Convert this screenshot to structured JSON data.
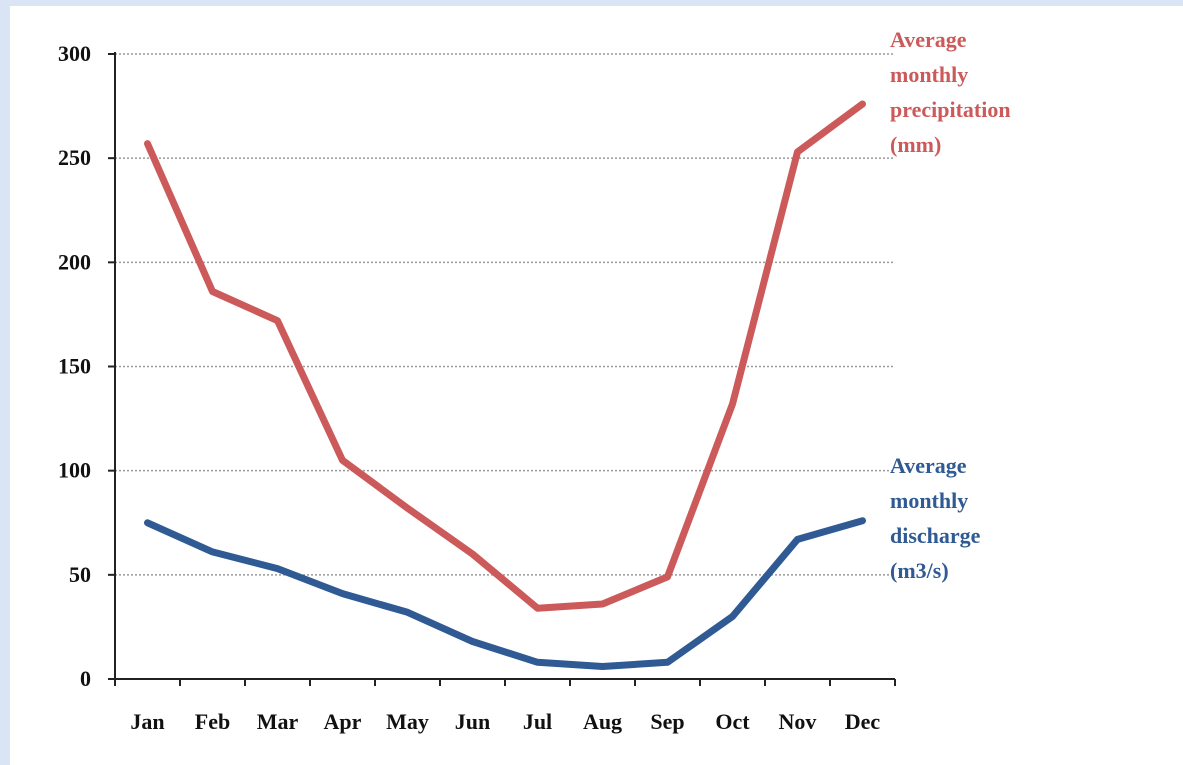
{
  "chart_data": {
    "type": "line",
    "categories": [
      "Jan",
      "Feb",
      "Mar",
      "Apr",
      "May",
      "Jun",
      "Jul",
      "Aug",
      "Sep",
      "Oct",
      "Nov",
      "Dec"
    ],
    "series": [
      {
        "name": "Average monthly precipitation (mm)",
        "label_lines": [
          "Average",
          "monthly",
          "precipitation",
          "(mm)"
        ],
        "color": "#cc5a5a",
        "values": [
          257,
          186,
          172,
          105,
          82,
          60,
          34,
          36,
          49,
          132,
          253,
          276
        ]
      },
      {
        "name": "Average monthly discharge (m3/s)",
        "label_lines": [
          "Average",
          "monthly",
          "discharge",
          "(m3/s)"
        ],
        "color": "#2f5a93",
        "values": [
          75,
          61,
          53,
          41,
          32,
          18,
          8,
          6,
          8,
          30,
          67,
          76
        ]
      }
    ],
    "ylim": [
      0,
      300
    ],
    "yticks": [
      0,
      50,
      100,
      150,
      200,
      250,
      300
    ],
    "grid": true,
    "legend": "right"
  }
}
